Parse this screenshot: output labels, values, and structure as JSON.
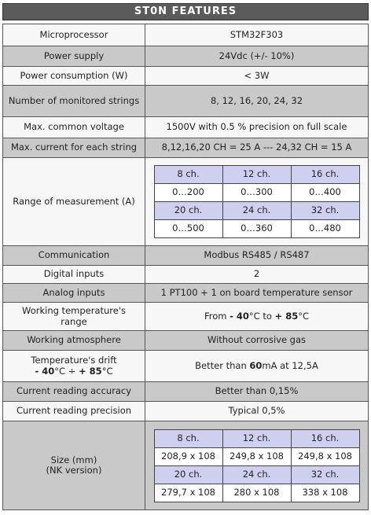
{
  "header": {
    "title": "ST0N FEATURES"
  },
  "table": {
    "rows": [
      {
        "label": "Microprocessor",
        "value": "STM32F303"
      },
      {
        "label": "Power supply",
        "value": "24Vdc (+/- 10%)"
      },
      {
        "label": "Power consumption (W)",
        "value": "< 3W"
      },
      {
        "label": "Number of monitored strings",
        "value": "8, 12, 16, 20, 24, 32"
      },
      {
        "label": "Max. common voltage",
        "value": "1500V with 0.5 % precision on full scale"
      },
      {
        "label": "Max. current for each string",
        "value": "8,12,16,20 CH = 25 A  ---  24,32 CH = 15 A"
      },
      {
        "label": "Range of measurement (A)",
        "value": {
          "grid": [
            [
              "8 ch.",
              "12 ch.",
              "16 ch."
            ],
            [
              "0…200",
              "0…300",
              "0…400"
            ],
            [
              "20 ch.",
              "24 ch.",
              "32 ch."
            ],
            [
              "0…500",
              "0…360",
              "0…480"
            ]
          ]
        }
      },
      {
        "label": "Communication",
        "value": "Modbus RS485 / RS487"
      },
      {
        "label": "Digital inputs",
        "value": "2"
      },
      {
        "label": "Analog inputs",
        "value": "1 PT100 + 1 on board temperature sensor"
      },
      {
        "label": "Working temperature's range",
        "value": [
          "From ",
          "- 40",
          "°C  to ",
          "+ 85",
          "°C"
        ]
      },
      {
        "label": "Working atmosphere",
        "value": "Without corrosive gas"
      },
      {
        "label": "Temperature's drift",
        "label_note": [
          "",
          "- 40",
          "°C ÷ ",
          "+ 85",
          "°C"
        ],
        "value": [
          "Better than ",
          "60",
          "mA at 12,5A"
        ]
      },
      {
        "label": "Current reading accuracy",
        "value": "Better than 0,15%"
      },
      {
        "label": "Current reading precision",
        "value": "Typical 0,5%"
      },
      {
        "label": "Size (mm)",
        "label_note": "(NK version)",
        "value": {
          "grid": [
            [
              "8 ch.",
              "12 ch.",
              "16 ch."
            ],
            [
              "208,9 x 108",
              "249,8 x 108",
              "249,8 x 108"
            ],
            [
              "20 ch.",
              "24 ch.",
              "32 ch."
            ],
            [
              "279,7 x 108",
              "280 x 108",
              "338 x 108"
            ]
          ]
        }
      }
    ]
  }
}
